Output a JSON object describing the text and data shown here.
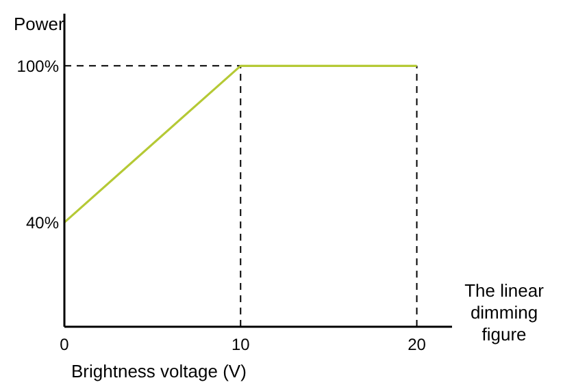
{
  "chart_data": {
    "type": "line",
    "ylabel": "Power",
    "xlabel": "Brightness voltage (V)",
    "x": [
      0,
      10,
      20
    ],
    "series": [
      {
        "color": "#b5c935",
        "values": [
          40,
          100,
          100
        ]
      }
    ],
    "xlim": [
      0,
      22
    ],
    "xticks": [
      0,
      10,
      20
    ],
    "ylim": [
      0,
      120
    ],
    "yticks": [
      {
        "value": 40,
        "label": "40%"
      },
      {
        "value": 100,
        "label": "100%"
      }
    ],
    "ref_lines": [
      {
        "axis": "y",
        "value": 100,
        "color": "#000000",
        "line_style": "dashed"
      },
      {
        "axis": "x",
        "value": 10,
        "color": "#000000",
        "line_style": "dashed"
      },
      {
        "axis": "x",
        "value": 20,
        "color": "#000000",
        "line_style": "dashed"
      }
    ],
    "annotations": [
      "The linear dimming figure"
    ],
    "grid": false,
    "marker": "none",
    "line_style": "solid"
  }
}
